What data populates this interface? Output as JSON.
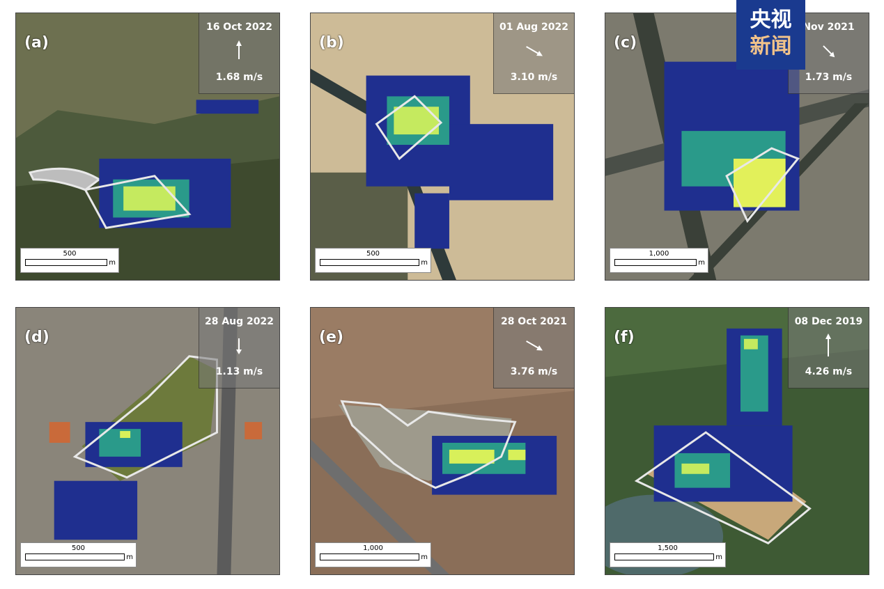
{
  "panels": [
    {
      "label": "(a)",
      "date": "16 Oct 2022",
      "speed": "1.68 m/s",
      "scale": "500",
      "unit": "m",
      "wind_dir_deg": 0
    },
    {
      "label": "(b)",
      "date": "01 Aug 2022",
      "speed": "3.10 m/s",
      "scale": "500",
      "unit": "m",
      "wind_dir_deg": 120
    },
    {
      "label": "(c)",
      "date": "Nov 2021",
      "speed": "1.73 m/s",
      "scale": "1,000",
      "unit": "m",
      "wind_dir_deg": 135
    },
    {
      "label": "(d)",
      "date": "28 Aug 2022",
      "speed": "1.13 m/s",
      "scale": "500",
      "unit": "m",
      "wind_dir_deg": 180
    },
    {
      "label": "(e)",
      "date": "28 Oct 2021",
      "speed": "3.76 m/s",
      "scale": "1,000",
      "unit": "m",
      "wind_dir_deg": 120
    },
    {
      "label": "(f)",
      "date": "08 Dec 2019",
      "speed": "4.26 m/s",
      "scale": "1,500",
      "unit": "m",
      "wind_dir_deg": 0
    }
  ],
  "logo": {
    "line1": "央视",
    "line2": "新闻"
  },
  "colors": {
    "plume_low": "#1f2f8f",
    "plume_mid": "#2a9a8a",
    "plume_high": "#d8f05a",
    "outline": "#e8e8e8"
  }
}
